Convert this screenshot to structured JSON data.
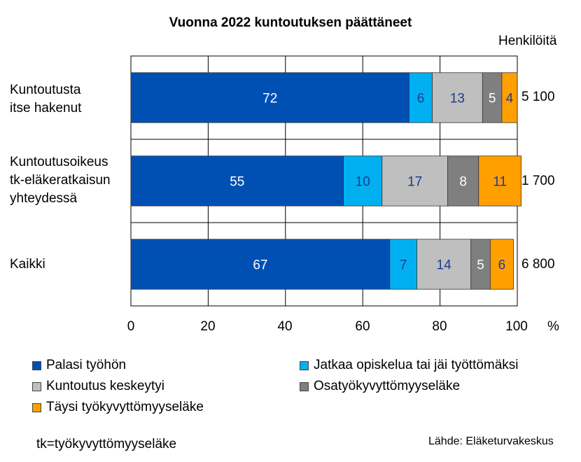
{
  "chart_data": {
    "type": "bar",
    "orientation": "horizontal",
    "stacked": true,
    "title": "Vuonna 2022 kuntoutuksen päättäneet",
    "total_header": "Henkilöitä",
    "x_unit": "%",
    "xlim": [
      0,
      100
    ],
    "x_ticks": [
      "0",
      "20",
      "40",
      "60",
      "80",
      "100"
    ],
    "grid": true,
    "legend_position": "bottom",
    "categories": [
      {
        "label_lines": [
          "Kuntoutusta",
          "itse hakenut"
        ],
        "total": "5 100"
      },
      {
        "label_lines": [
          "Kuntoutusoikeus",
          "tk-eläkeratkaisun",
          "yhteydessä"
        ],
        "total": "1 700"
      },
      {
        "label_lines": [
          "Kaikki"
        ],
        "total": "6 800"
      }
    ],
    "series": [
      {
        "name": "Palasi työhön",
        "color": "#0050B4",
        "label_color": "#ffffff",
        "values": [
          72,
          55,
          67
        ]
      },
      {
        "name": "Jatkaa opiskelua tai jäi työttömäksi",
        "color": "#00B0F0",
        "label_color": "#1F3A93",
        "values": [
          6,
          10,
          7
        ]
      },
      {
        "name": "Kuntoutus keskeytyi",
        "color": "#BFBFBF",
        "label_color": "#1F3A93",
        "values": [
          13,
          17,
          14
        ]
      },
      {
        "name": "Osatyökyvyttömyyseläke",
        "color": "#7F7F7F",
        "label_color": "#ffffff",
        "values": [
          5,
          8,
          5
        ]
      },
      {
        "name": "Täysi työkyvyttömyyseläke",
        "color": "#FFA000",
        "label_color": "#1F3A93",
        "values": [
          4,
          11,
          6
        ]
      }
    ]
  },
  "footnote": "tk=työkyvyttömyyseläke",
  "source": "Lähde: Eläketurvakeskus"
}
